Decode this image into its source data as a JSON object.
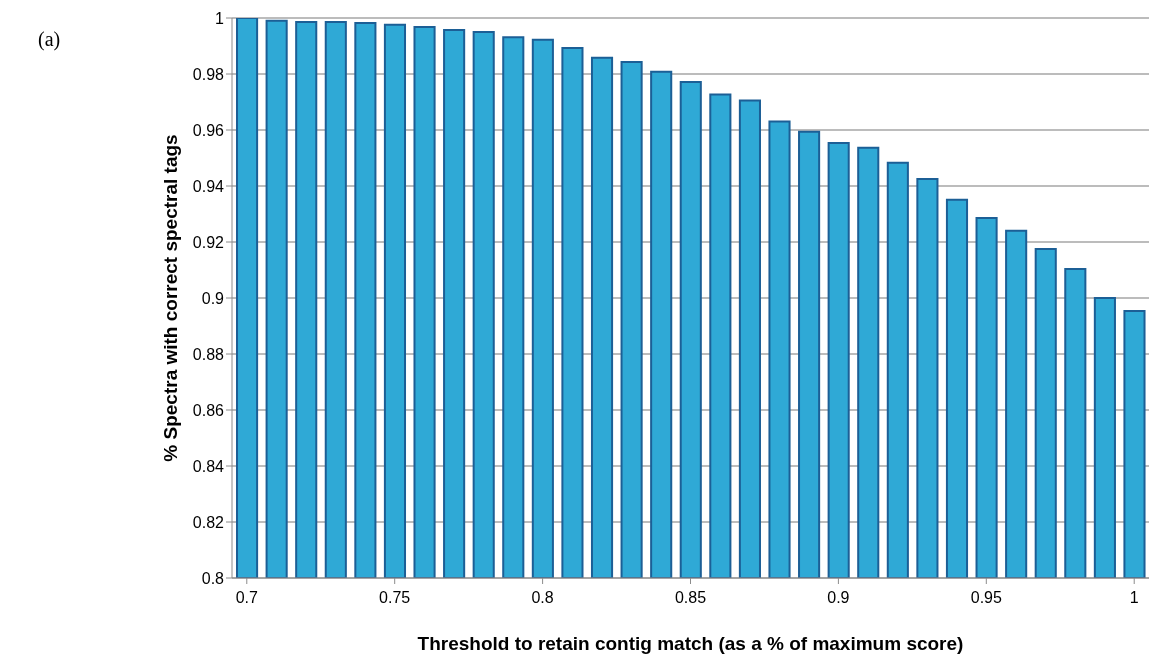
{
  "chart_data": {
    "type": "bar",
    "xlabel": "Threshold to retain contig match (as a % of maximum score)",
    "ylabel": "% Spectra with correct spectral tags",
    "annotations": [
      "(a)"
    ],
    "x": [
      0.7,
      0.71,
      0.72,
      0.73,
      0.74,
      0.75,
      0.76,
      0.77,
      0.78,
      0.79,
      0.8,
      0.81,
      0.82,
      0.83,
      0.84,
      0.85,
      0.86,
      0.87,
      0.88,
      0.89,
      0.9,
      0.91,
      0.92,
      0.93,
      0.94,
      0.95,
      0.96,
      0.97,
      0.98,
      0.99,
      1.0
    ],
    "values": [
      1.0,
      0.999,
      0.9986,
      0.9986,
      0.9982,
      0.9976,
      0.9968,
      0.9957,
      0.995,
      0.9931,
      0.9922,
      0.9893,
      0.9858,
      0.9843,
      0.9808,
      0.9771,
      0.9727,
      0.9705,
      0.963,
      0.9594,
      0.9554,
      0.9537,
      0.9483,
      0.9425,
      0.9351,
      0.9286,
      0.924,
      0.9175,
      0.9104,
      0.9,
      0.8954
    ],
    "color": "#2fa9d6",
    "xlim": [
      0.695,
      1.005
    ],
    "xticks": [
      0.7,
      0.75,
      0.8,
      0.85,
      0.9,
      0.95,
      1
    ],
    "ylim": [
      0.8,
      1
    ],
    "yticks": [
      0.8,
      0.82,
      0.84,
      0.86,
      0.88,
      0.9,
      0.92,
      0.94,
      0.96,
      0.98,
      1
    ],
    "grid": "y"
  }
}
